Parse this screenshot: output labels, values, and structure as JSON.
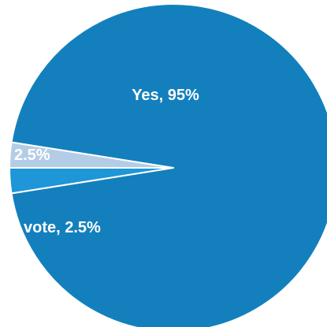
{
  "chart_data": {
    "type": "pie",
    "slices": [
      {
        "label": "Yes, 95%",
        "value": 95,
        "color": "#1380bd"
      },
      {
        "label": "2.5%",
        "value": 2.5,
        "color": "#b4cde6"
      },
      {
        "label": "vote, 2.5%",
        "value": 2.5,
        "color": "#1e96d8"
      }
    ],
    "slice_border_color": "#ffffff"
  }
}
